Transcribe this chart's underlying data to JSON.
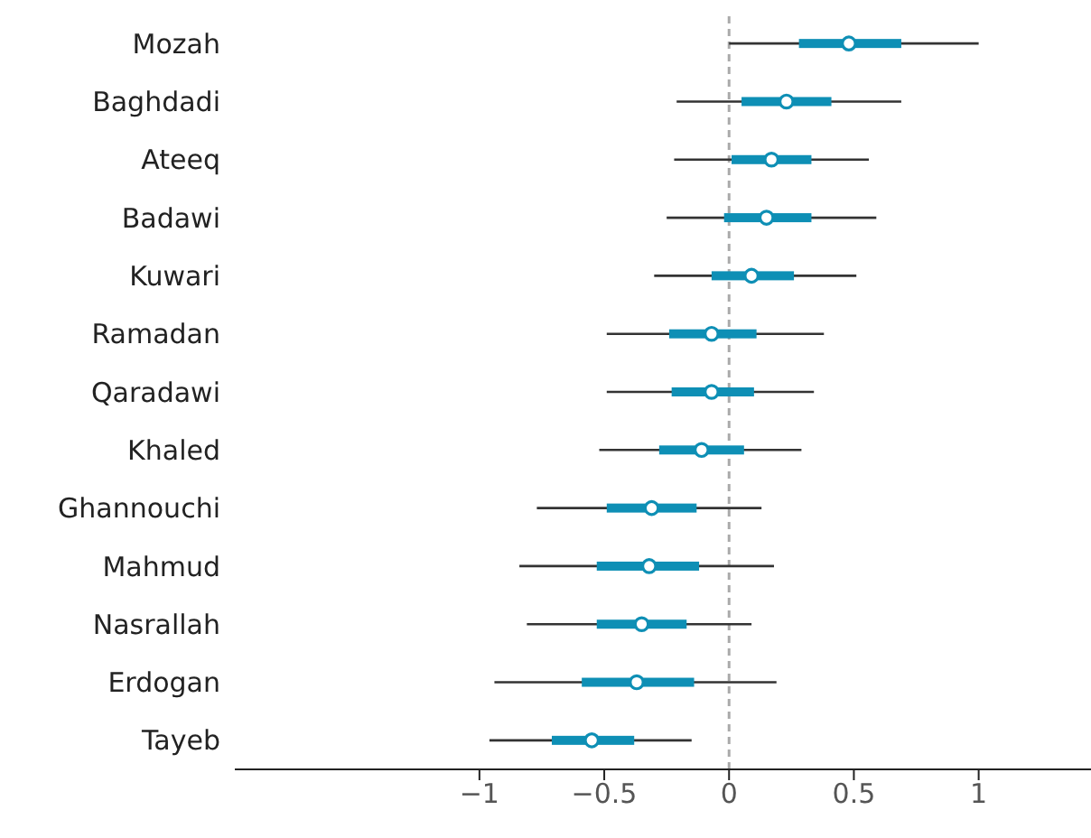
{
  "chart_data": {
    "type": "box",
    "orientation": "horizontal",
    "categories": [
      "Mozah",
      "Baghdadi",
      "Ateeq",
      "Badawi",
      "Kuwari",
      "Ramadan",
      "Qaradawi",
      "Khaled",
      "Ghannouchi",
      "Mahmud",
      "Nasrallah",
      "Erdogan",
      "Tayeb"
    ],
    "color": "#0e8fb5",
    "boxes": [
      {
        "low": 0.0,
        "q1": 0.28,
        "median": 0.48,
        "q3": 0.69,
        "high": 1.0
      },
      {
        "low": -0.21,
        "q1": 0.05,
        "median": 0.23,
        "q3": 0.41,
        "high": 0.69
      },
      {
        "low": -0.22,
        "q1": 0.01,
        "median": 0.17,
        "q3": 0.33,
        "high": 0.56
      },
      {
        "low": -0.25,
        "q1": -0.02,
        "median": 0.15,
        "q3": 0.33,
        "high": 0.59
      },
      {
        "low": -0.3,
        "q1": -0.07,
        "median": 0.09,
        "q3": 0.26,
        "high": 0.51
      },
      {
        "low": -0.49,
        "q1": -0.24,
        "median": -0.07,
        "q3": 0.11,
        "high": 0.38
      },
      {
        "low": -0.49,
        "q1": -0.23,
        "median": -0.07,
        "q3": 0.1,
        "high": 0.34
      },
      {
        "low": -0.52,
        "q1": -0.28,
        "median": -0.11,
        "q3": 0.06,
        "high": 0.29
      },
      {
        "low": -0.77,
        "q1": -0.49,
        "median": -0.31,
        "q3": -0.13,
        "high": 0.13
      },
      {
        "low": -0.84,
        "q1": -0.53,
        "median": -0.32,
        "q3": -0.12,
        "high": 0.18
      },
      {
        "low": -0.81,
        "q1": -0.53,
        "median": -0.35,
        "q3": -0.17,
        "high": 0.09
      },
      {
        "low": -0.94,
        "q1": -0.59,
        "median": -0.37,
        "q3": -0.14,
        "high": 0.19
      },
      {
        "low": -0.96,
        "q1": -0.71,
        "median": -0.55,
        "q3": -0.38,
        "high": -0.15
      }
    ],
    "xlim": [
      -1.98,
      1.45
    ],
    "xticks": [
      {
        "value": -1,
        "label": "−1"
      },
      {
        "value": -0.5,
        "label": "−0.5"
      },
      0,
      0.5,
      1
    ],
    "ref_lines": [
      {
        "axis": "x",
        "value": 0,
        "color": "#aaaaaa",
        "line_style": "dashed"
      }
    ],
    "grid": false,
    "legend": false
  }
}
